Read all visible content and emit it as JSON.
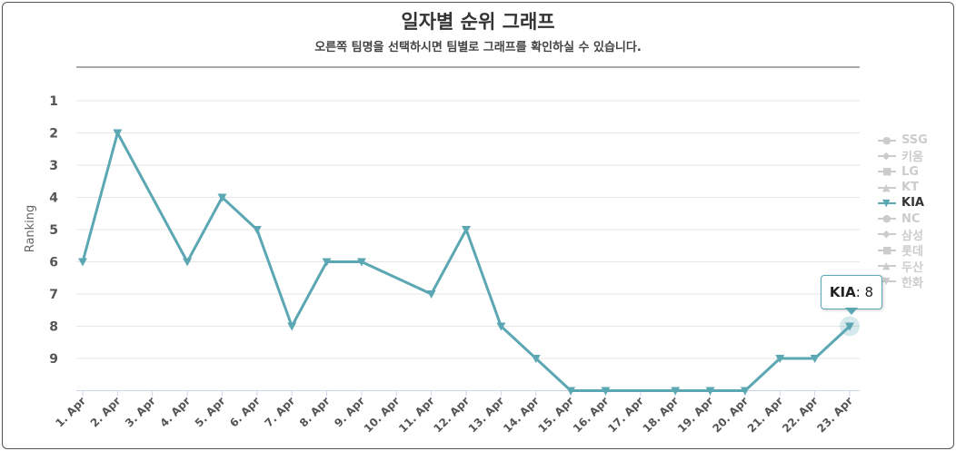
{
  "chart_data": {
    "type": "line",
    "title": "일자별 순위 그래프",
    "subtitle": "오른쪽 팀명을 선택하시면 팀별로 그래프를 확인하실 수 있습니다.",
    "ylabel": "Ranking",
    "xlabel": "",
    "ylim": [
      1,
      10
    ],
    "y_reversed": true,
    "yticks": [
      1,
      2,
      3,
      4,
      5,
      6,
      7,
      8,
      9
    ],
    "categories": [
      "1. Apr",
      "2. Apr",
      "3. Apr",
      "4. Apr",
      "5. Apr",
      "6. Apr",
      "7. Apr",
      "8. Apr",
      "9. Apr",
      "10. Apr",
      "11. Apr",
      "12. Apr",
      "13. Apr",
      "14. Apr",
      "15. Apr",
      "16. Apr",
      "17. Apr",
      "18. Apr",
      "19. Apr",
      "20. Apr",
      "21. Apr",
      "22. Apr",
      "23. Apr"
    ],
    "series": [
      {
        "name": "KIA",
        "color": "#5ba7b3",
        "marker": "triangle-down",
        "values": [
          6,
          2,
          null,
          6,
          4,
          5,
          8,
          6,
          6,
          null,
          7,
          5,
          8,
          9,
          10,
          10,
          null,
          10,
          10,
          10,
          9,
          9,
          8
        ]
      }
    ],
    "legend": {
      "placement": "right",
      "items": [
        {
          "name": "SSG",
          "marker": "●",
          "active": false
        },
        {
          "name": "키움",
          "marker": "◆",
          "active": false
        },
        {
          "name": "LG",
          "marker": "■",
          "active": false
        },
        {
          "name": "KT",
          "marker": "▲",
          "active": false
        },
        {
          "name": "KIA",
          "marker": "▼",
          "active": true
        },
        {
          "name": "NC",
          "marker": "●",
          "active": false
        },
        {
          "name": "삼성",
          "marker": "◆",
          "active": false
        },
        {
          "name": "롯데",
          "marker": "■",
          "active": false
        },
        {
          "name": "두산",
          "marker": "▲",
          "active": false
        },
        {
          "name": "한화",
          "marker": "▼",
          "active": false
        }
      ]
    },
    "tooltip": {
      "series": "KIA",
      "separator": ": ",
      "value": "8",
      "category_index": 22
    }
  }
}
